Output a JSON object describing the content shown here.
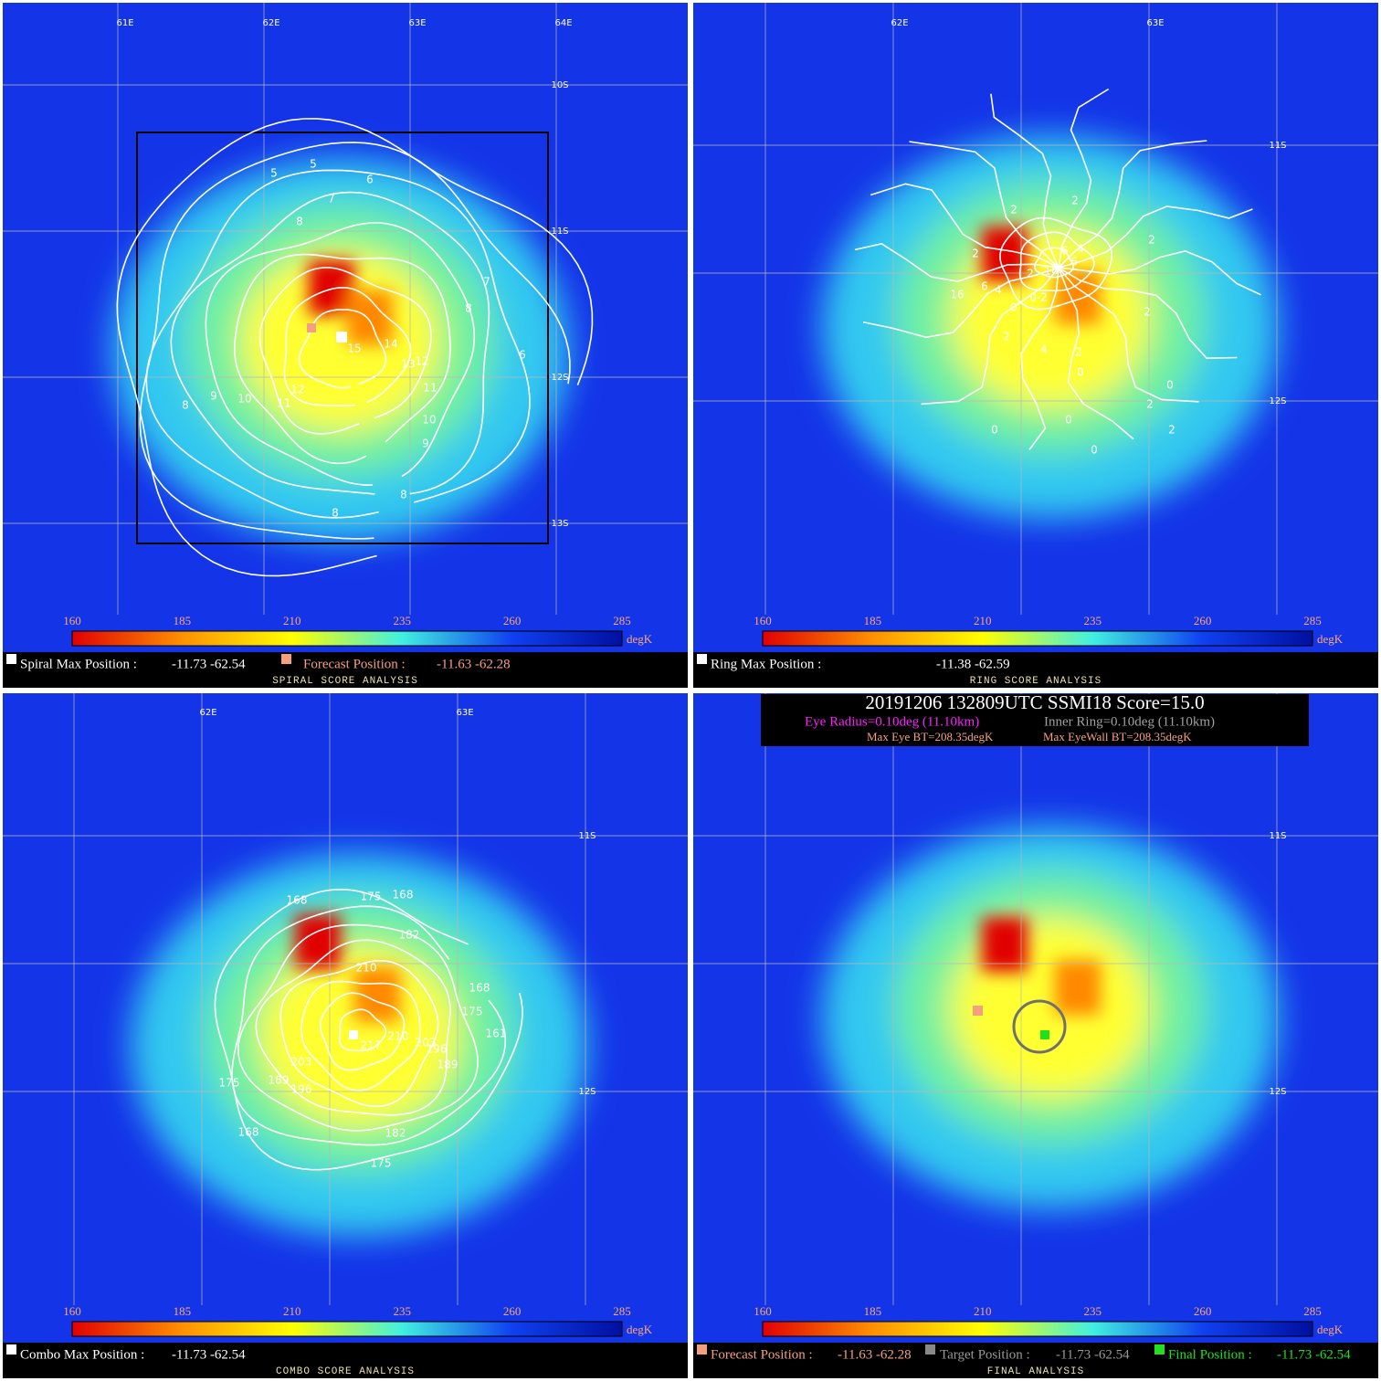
{
  "colorbar": {
    "ticks": [
      160,
      185,
      210,
      235,
      260,
      285
    ],
    "unit": "degK"
  },
  "header": {
    "line1": "20191206  132809UTC    SSMI18    Score=15.0",
    "eye_radius": "Eye Radius=0.10deg (11.10km)",
    "inner_ring": "Inner Ring=0.10deg (11.10km)",
    "max_eye_bt": "Max Eye BT=208.35degK",
    "max_eyewall_bt": "Max EyeWall BT=208.35degK"
  },
  "panels": [
    {
      "title": "SPIRAL SCORE ANALYSIS",
      "lon_labels": [
        "61E",
        "62E",
        "63E",
        "64E"
      ],
      "lat_labels": [
        "10S",
        "11S",
        "12S",
        "13S"
      ],
      "contour_labels": [
        "5",
        "5",
        "6",
        "7",
        "8",
        "7",
        "8",
        "6",
        "14",
        "15",
        "13",
        "12",
        "11",
        "10",
        "9",
        "8",
        "8",
        "12",
        "11",
        "10",
        "9",
        "8"
      ],
      "legend": [
        {
          "label": "Spiral Max Position :",
          "value": "-11.73  -62.54"
        },
        {
          "label": "Forecast Position :",
          "value": "-11.63 -62.28"
        }
      ]
    },
    {
      "title": "RING SCORE ANALYSIS",
      "lon_labels": [
        "62E",
        "63E"
      ],
      "lat_labels": [
        "11S",
        "12S"
      ],
      "contour_labels": [
        "2",
        "2",
        "2",
        "2",
        "16",
        "6",
        "4",
        "0",
        "2",
        "0-2",
        "4",
        "2",
        "0",
        "2",
        "2",
        "0",
        "0",
        "0",
        "0",
        "2",
        "6",
        "4",
        "6",
        "16",
        "2"
      ],
      "legend": [
        {
          "label": "Ring Max Position :",
          "value": "-11.38  -62.59"
        }
      ]
    },
    {
      "title": "COMBO SCORE ANALYSIS",
      "lon_labels": [
        "62E",
        "63E"
      ],
      "lat_labels": [
        "11S",
        "12S"
      ],
      "contour_labels": [
        "168",
        "175",
        "168",
        "182",
        "210",
        "168",
        "175",
        "161",
        "217",
        "210",
        "203",
        "196",
        "189",
        "203",
        "189",
        "196",
        "175",
        "168",
        "182",
        "175"
      ],
      "legend": [
        {
          "label": "Combo Max Position :",
          "value": "-11.73  -62.54"
        }
      ]
    },
    {
      "title": "FINAL ANALYSIS",
      "lon_labels": [],
      "lat_labels": [
        "11S",
        "12S"
      ],
      "contour_labels": [],
      "legend": [
        {
          "label": "Forecast Position :",
          "value": "-11.63 -62.28"
        },
        {
          "label": "Target Position :",
          "value": "-11.73 -62.54"
        },
        {
          "label": "Final Position :",
          "value": "-11.73 -62.54"
        }
      ]
    }
  ]
}
